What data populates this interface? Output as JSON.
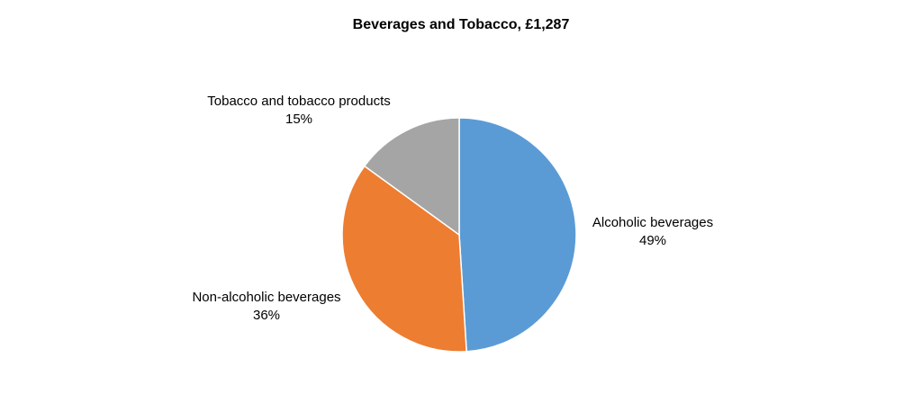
{
  "chart_data": {
    "type": "pie",
    "title": "Beverages and Tobacco, £1,287",
    "start_angle_deg": 0,
    "direction": "clockwise",
    "slices": [
      {
        "label": "Alcoholic beverages",
        "value": 49,
        "value_label": "49%",
        "color": "#5B9BD5"
      },
      {
        "label": "Non-alcoholic beverages",
        "value": 36,
        "value_label": "36%",
        "color": "#ED7D31"
      },
      {
        "label": "Tobacco and tobacco products",
        "value": 15,
        "value_label": "15%",
        "color": "#A5A5A5"
      }
    ]
  }
}
